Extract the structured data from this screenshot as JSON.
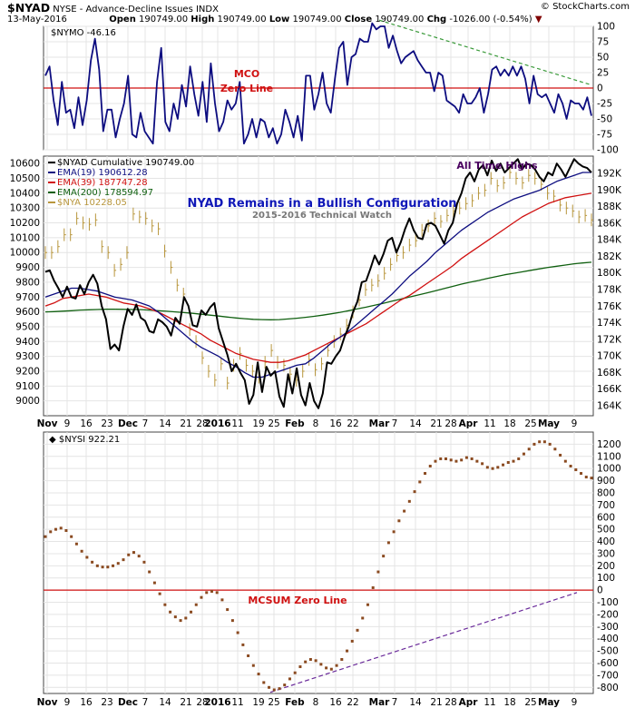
{
  "header": {
    "symbol": "$NYAD",
    "name": "NYSE - Advance-Decline Issues INDX",
    "date": "13-May-2016",
    "open_label": "Open",
    "open": "190749.00",
    "high_label": "High",
    "high": "190749.00",
    "low_label": "Low",
    "low": "190749.00",
    "close_label": "Close",
    "close": "190749.00",
    "chg_label": "Chg",
    "chg": "-1026.00 (-0.54%)",
    "brand": "© StockCharts.com"
  },
  "colors": {
    "navy": "#0d0d80",
    "red": "#d01010",
    "black": "#000000",
    "green": "#106010",
    "gold": "#b8963c",
    "brown": "#8a4a20",
    "dashgreen": "#3a9a3a",
    "purple": "#6a2a9a"
  },
  "x_axis": {
    "labels": [
      "Nov",
      "9",
      "16",
      "23",
      "Dec",
      "7",
      "14",
      "21",
      "28",
      "2016",
      "11",
      "19",
      "25",
      "Feb",
      "8",
      "16",
      "22",
      "Mar",
      "7",
      "14",
      "21",
      "28",
      "Apr",
      "11",
      "18",
      "25",
      "May",
      "9"
    ],
    "bold": [
      "Nov",
      "Dec",
      "2016",
      "Feb",
      "Mar",
      "Apr",
      "May"
    ]
  },
  "chart_data": [
    {
      "type": "line",
      "legend": "$NYMO -46.16",
      "annotations": [
        "MCO",
        "Zero Line"
      ],
      "ylim": [
        -100,
        100
      ],
      "yticks": [
        -100,
        -75,
        -50,
        -25,
        0,
        25,
        50,
        75,
        100
      ],
      "series": [
        {
          "name": "$NYMO",
          "values": [
            20,
            35,
            -20,
            -60,
            10,
            -40,
            -35,
            -65,
            -15,
            -60,
            -20,
            45,
            80,
            30,
            -70,
            -35,
            -35,
            -80,
            -50,
            -25,
            20,
            -75,
            -80,
            -40,
            -70,
            -80,
            -90,
            10,
            65,
            -55,
            -70,
            -25,
            -50,
            5,
            -30,
            35,
            -10,
            -45,
            10,
            -55,
            40,
            -25,
            -70,
            -55,
            -20,
            -35,
            -25,
            10,
            -90,
            -75,
            -50,
            -80,
            -50,
            -55,
            -80,
            -65,
            -90,
            -75,
            -35,
            -55,
            -80,
            -45,
            -85,
            20,
            20,
            -35,
            -10,
            25,
            -25,
            -40,
            15,
            65,
            75,
            5,
            50,
            55,
            80,
            75,
            75,
            105,
            95,
            100,
            100,
            65,
            85,
            60,
            40,
            50,
            55,
            60,
            45,
            35,
            25,
            25,
            -5,
            25,
            20,
            -20,
            -25,
            -30,
            -40,
            -10,
            -25,
            -25,
            -15,
            0,
            -40,
            -10,
            30,
            35,
            20,
            30,
            20,
            35,
            20,
            35,
            15,
            -25,
            20,
            -10,
            -15,
            -10,
            -25,
            -40,
            -10,
            -25,
            -50,
            -20,
            -25,
            -25,
            -35,
            -15,
            -45
          ]
        }
      ]
    },
    {
      "type": "line",
      "title": "NYAD Remains in a Bullish Configuration",
      "subtitle": "2015-2016 Technical Watch",
      "annotations": [
        "All Time Highs"
      ],
      "ylim": [
        8900,
        10650
      ],
      "yticks": [
        9000,
        9100,
        9200,
        9300,
        9400,
        9500,
        9600,
        9700,
        9800,
        9900,
        10000,
        10100,
        10200,
        10300,
        10400,
        10500,
        10600
      ],
      "yticks_right": [
        "164K",
        "166K",
        "168K",
        "170K",
        "172K",
        "174K",
        "176K",
        "178K",
        "180K",
        "182K",
        "184K",
        "186K",
        "188K",
        "190K",
        "192K"
      ],
      "series": [
        {
          "name": "$NYAD Cumulative 190749.00",
          "values": [
            9870,
            9880,
            9810,
            9760,
            9700,
            9770,
            9700,
            9690,
            9780,
            9720,
            9800,
            9850,
            9790,
            9640,
            9550,
            9350,
            9380,
            9340,
            9500,
            9620,
            9580,
            9650,
            9560,
            9540,
            9470,
            9460,
            9550,
            9530,
            9500,
            9440,
            9560,
            9520,
            9700,
            9640,
            9510,
            9500,
            9610,
            9580,
            9630,
            9660,
            9490,
            9400,
            9310,
            9200,
            9250,
            9190,
            9140,
            8980,
            9040,
            9260,
            9060,
            9230,
            9170,
            9200,
            9030,
            8960,
            9180,
            9050,
            9220,
            9040,
            8970,
            9120,
            9000,
            8950,
            9050,
            9260,
            9250,
            9300,
            9340,
            9430,
            9500,
            9600,
            9670,
            9800,
            9810,
            9890,
            9980,
            9920,
            9990,
            10080,
            10100,
            10000,
            10070,
            10160,
            10230,
            10150,
            10100,
            10090,
            10190,
            10200,
            10180,
            10120,
            10060,
            10150,
            10200,
            10330,
            10400,
            10500,
            10540,
            10480,
            10560,
            10590,
            10520,
            10620,
            10550,
            10600,
            10540,
            10570,
            10600,
            10630,
            10560,
            10600,
            10590,
            10560,
            10510,
            10480,
            10540,
            10520,
            10600,
            10560,
            10510,
            10570,
            10630,
            10600,
            10580,
            10570,
            10540
          ]
        },
        {
          "name": "EMA(19) 190612.28",
          "values": [
            9700,
            9720,
            9740,
            9760,
            9760,
            9750,
            9740,
            9720,
            9700,
            9690,
            9680,
            9660,
            9640,
            9600,
            9550,
            9500,
            9450,
            9400,
            9360,
            9330,
            9300,
            9260,
            9230,
            9190,
            9160,
            9160,
            9180,
            9200,
            9220,
            9240,
            9250,
            9290,
            9340,
            9390,
            9430,
            9470,
            9520,
            9570,
            9620,
            9670,
            9720,
            9780,
            9840,
            9890,
            9940,
            10000,
            10050,
            10100,
            10150,
            10190,
            10230,
            10270,
            10300,
            10330,
            10360,
            10380,
            10400,
            10420,
            10450,
            10480,
            10500,
            10520,
            10540,
            10540
          ]
        },
        {
          "name": "EMA(39) 187747.28",
          "values": [
            9640,
            9660,
            9690,
            9700,
            9710,
            9720,
            9710,
            9700,
            9680,
            9660,
            9650,
            9640,
            9620,
            9600,
            9570,
            9540,
            9510,
            9480,
            9450,
            9410,
            9380,
            9350,
            9320,
            9300,
            9280,
            9270,
            9260,
            9260,
            9270,
            9290,
            9310,
            9340,
            9370,
            9400,
            9430,
            9460,
            9490,
            9520,
            9560,
            9600,
            9640,
            9680,
            9710,
            9750,
            9790,
            9830,
            9870,
            9910,
            9960,
            10000,
            10040,
            10080,
            10120,
            10160,
            10200,
            10240,
            10270,
            10300,
            10330,
            10350,
            10370,
            10380,
            10390,
            10400
          ]
        },
        {
          "name": "EMA(200) 178594.97",
          "values": [
            9600,
            9602,
            9605,
            9608,
            9612,
            9614,
            9616,
            9618,
            9618,
            9617,
            9616,
            9615,
            9612,
            9608,
            9604,
            9600,
            9595,
            9590,
            9584,
            9578,
            9572,
            9565,
            9559,
            9554,
            9550,
            9548,
            9547,
            9548,
            9552,
            9557,
            9563,
            9570,
            9578,
            9587,
            9597,
            9608,
            9620,
            9632,
            9645,
            9658,
            9672,
            9686,
            9700,
            9714,
            9728,
            9742,
            9757,
            9772,
            9787,
            9800,
            9812,
            9825,
            9838,
            9850,
            9860,
            9870,
            9880,
            9890,
            9900,
            9908,
            9916,
            9924,
            9930,
            9935
          ]
        },
        {
          "name": "$NYA 10228.05",
          "values": [
            10000,
            10000,
            10040,
            10120,
            10120,
            10230,
            10200,
            10190,
            10220,
            10040,
            10000,
            9880,
            9920,
            10000,
            10260,
            10240,
            10230,
            10180,
            10160,
            10010,
            9900,
            9780,
            9720,
            9480,
            9400,
            9290,
            9200,
            9140,
            9250,
            9120,
            9240,
            9320,
            9240,
            9200,
            9160,
            9260,
            9340,
            9260,
            9240,
            9180,
            9140,
            9200,
            9280,
            9210,
            9250,
            9340,
            9400,
            9450,
            9510,
            9600,
            9680,
            9750,
            9780,
            9810,
            9860,
            9920,
            9980,
            10000,
            10050,
            10080,
            10150,
            10180,
            10230,
            10210,
            10250,
            10280,
            10300,
            10330,
            10350,
            10400,
            10420,
            10500,
            10450,
            10470,
            10540,
            10500,
            10470,
            10520,
            10500,
            10460,
            10400,
            10380,
            10320,
            10300,
            10280,
            10240,
            10250,
            10220
          ]
        }
      ]
    },
    {
      "type": "scatter",
      "legend": "$NYSI 922.21",
      "annotations": [
        "MCSUM Zero Line"
      ],
      "ylim": [
        -850,
        1300
      ],
      "yticks": [
        -800,
        -700,
        -600,
        -500,
        -400,
        -300,
        -200,
        -100,
        0,
        100,
        200,
        300,
        400,
        500,
        600,
        700,
        800,
        900,
        1000,
        1100,
        1200
      ],
      "series": [
        {
          "name": "$NYSI",
          "values": [
            440,
            480,
            500,
            510,
            490,
            440,
            380,
            320,
            270,
            230,
            200,
            190,
            190,
            200,
            220,
            250,
            290,
            310,
            280,
            230,
            150,
            60,
            -30,
            -120,
            -180,
            -220,
            -250,
            -230,
            -180,
            -120,
            -60,
            -20,
            -10,
            -20,
            -80,
            -160,
            -250,
            -350,
            -450,
            -540,
            -620,
            -690,
            -760,
            -800,
            -820,
            -810,
            -780,
            -730,
            -680,
            -630,
            -590,
            -570,
            -580,
            -610,
            -640,
            -650,
            -620,
            -570,
            -500,
            -420,
            -330,
            -230,
            -120,
            20,
            150,
            280,
            390,
            480,
            570,
            650,
            730,
            810,
            890,
            960,
            1020,
            1060,
            1080,
            1080,
            1070,
            1060,
            1070,
            1090,
            1080,
            1060,
            1040,
            1010,
            1000,
            1010,
            1030,
            1050,
            1060,
            1080,
            1120,
            1160,
            1200,
            1220,
            1220,
            1200,
            1160,
            1110,
            1060,
            1020,
            990,
            960,
            930,
            922
          ]
        }
      ]
    }
  ]
}
